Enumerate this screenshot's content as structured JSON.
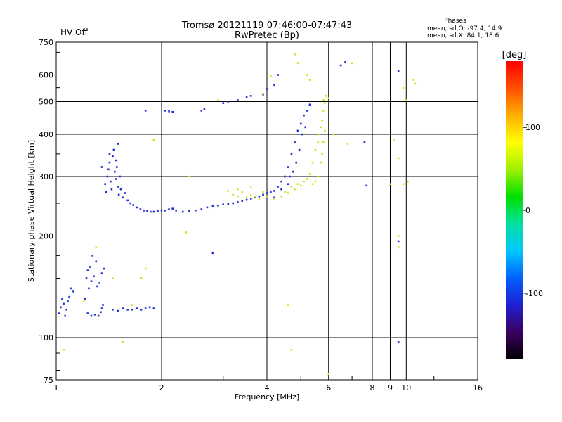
{
  "header": {
    "status": "HV Off",
    "status_color": "#cc0000",
    "title": "Tromsø 20121119 07:46:00-07:47:43",
    "subtitle": "RwPretec (Bp)",
    "stats_title": "Phases",
    "stats_o": "mean, sd,O: -97.4, 14.9",
    "stats_x": "mean, sd,X: 84.1, 18.6"
  },
  "chart_data": {
    "type": "scatter",
    "title": "Tromsø 20121119 07:46:00-07:47:43",
    "subtitle": "RwPretec (Bp)",
    "xlabel": "Frequency [MHz]",
    "ylabel": "Stationary phase Virtual Height [km]",
    "xscale": "log2",
    "yscale": "log",
    "xlim": [
      1,
      16
    ],
    "ylim": [
      75,
      750
    ],
    "xticks": [
      1,
      2,
      4,
      6,
      8,
      9,
      10,
      16
    ],
    "xtick_labels": [
      "1",
      "2",
      "4",
      "6",
      "8",
      "9",
      "10",
      "16"
    ],
    "yticks": [
      75,
      100,
      200,
      300,
      400,
      500,
      600,
      750
    ],
    "ytick_labels": [
      "75",
      "100",
      "200",
      "300",
      "400",
      "500",
      "600",
      "750"
    ],
    "grid": true,
    "colorbar": {
      "label": "[deg]",
      "range": [
        -180,
        180
      ],
      "ticks": [
        100,
        0,
        -100
      ],
      "tick_labels": [
        "100",
        "0",
        "-100"
      ],
      "colors": [
        "#000000",
        "#3a0060",
        "#2020d0",
        "#0060ff",
        "#00c8ff",
        "#00e0a0",
        "#00e000",
        "#a0f000",
        "#ffff00",
        "#ffb000",
        "#ff5000",
        "#ff0000"
      ]
    },
    "series": [
      {
        "name": "O",
        "color": "#2030d8",
        "points": [
          [
            1.02,
            118
          ],
          [
            1.03,
            123
          ],
          [
            1.05,
            126
          ],
          [
            1.07,
            121
          ],
          [
            1.09,
            132
          ],
          [
            1.1,
            140
          ],
          [
            1.12,
            137
          ],
          [
            1.06,
            116
          ],
          [
            1.04,
            130
          ],
          [
            1.08,
            128
          ],
          [
            1.22,
            150
          ],
          [
            1.23,
            158
          ],
          [
            1.25,
            162
          ],
          [
            1.26,
            147
          ],
          [
            1.28,
            152
          ],
          [
            1.3,
            168
          ],
          [
            1.31,
            142
          ],
          [
            1.27,
            175
          ],
          [
            1.24,
            140
          ],
          [
            1.21,
            130
          ],
          [
            1.23,
            118
          ],
          [
            1.26,
            116
          ],
          [
            1.29,
            117
          ],
          [
            1.32,
            116
          ],
          [
            1.34,
            119
          ],
          [
            1.35,
            122
          ],
          [
            1.36,
            125
          ],
          [
            1.33,
            145
          ],
          [
            1.35,
            155
          ],
          [
            1.37,
            160
          ],
          [
            1.38,
            285
          ],
          [
            1.39,
            270
          ],
          [
            1.4,
            300
          ],
          [
            1.41,
            315
          ],
          [
            1.42,
            330
          ],
          [
            1.43,
            290
          ],
          [
            1.44,
            275
          ],
          [
            1.45,
            345
          ],
          [
            1.46,
            360
          ],
          [
            1.47,
            310
          ],
          [
            1.48,
            295
          ],
          [
            1.49,
            320
          ],
          [
            1.5,
            280
          ],
          [
            1.51,
            265
          ],
          [
            1.52,
            300
          ],
          [
            1.53,
            275
          ],
          [
            1.55,
            260
          ],
          [
            1.57,
            268
          ],
          [
            1.6,
            255
          ],
          [
            1.63,
            250
          ],
          [
            1.66,
            247
          ],
          [
            1.7,
            243
          ],
          [
            1.74,
            240
          ],
          [
            1.78,
            238
          ],
          [
            1.82,
            237
          ],
          [
            1.86,
            236
          ],
          [
            1.9,
            236
          ],
          [
            1.95,
            237
          ],
          [
            2.0,
            238
          ],
          [
            2.05,
            238
          ],
          [
            2.1,
            240
          ],
          [
            2.15,
            241
          ],
          [
            2.2,
            238
          ],
          [
            2.3,
            236
          ],
          [
            2.4,
            237
          ],
          [
            2.5,
            238
          ],
          [
            2.6,
            240
          ],
          [
            2.7,
            243
          ],
          [
            2.8,
            245
          ],
          [
            2.9,
            246
          ],
          [
            3.0,
            248
          ],
          [
            3.1,
            249
          ],
          [
            3.2,
            250
          ],
          [
            3.3,
            252
          ],
          [
            3.4,
            254
          ],
          [
            3.5,
            256
          ],
          [
            3.6,
            258
          ],
          [
            3.7,
            260
          ],
          [
            3.8,
            262
          ],
          [
            3.9,
            265
          ],
          [
            4.0,
            268
          ],
          [
            4.1,
            270
          ],
          [
            4.2,
            272
          ],
          [
            4.3,
            280
          ],
          [
            4.4,
            290
          ],
          [
            4.5,
            300
          ],
          [
            4.6,
            320
          ],
          [
            4.7,
            350
          ],
          [
            4.8,
            380
          ],
          [
            4.9,
            410
          ],
          [
            5.0,
            430
          ],
          [
            5.1,
            455
          ],
          [
            5.2,
            470
          ],
          [
            5.3,
            490
          ],
          [
            4.85,
            330
          ],
          [
            4.95,
            360
          ],
          [
            5.05,
            400
          ],
          [
            5.15,
            420
          ],
          [
            4.75,
            310
          ],
          [
            4.65,
            300
          ],
          [
            1.55,
            122
          ],
          [
            1.6,
            121
          ],
          [
            1.65,
            121
          ],
          [
            1.7,
            122
          ],
          [
            1.75,
            121
          ],
          [
            1.8,
            122
          ],
          [
            1.45,
            121
          ],
          [
            1.5,
            120
          ],
          [
            1.85,
            123
          ],
          [
            1.9,
            122
          ],
          [
            1.8,
            470
          ],
          [
            2.05,
            470
          ],
          [
            2.1,
            468
          ],
          [
            2.15,
            466
          ],
          [
            2.6,
            470
          ],
          [
            2.65,
            476
          ],
          [
            3.0,
            495
          ],
          [
            3.1,
            500
          ],
          [
            3.3,
            505
          ],
          [
            3.5,
            515
          ],
          [
            3.6,
            520
          ],
          [
            3.9,
            525
          ],
          [
            4.0,
            545
          ],
          [
            4.2,
            560
          ],
          [
            4.3,
            600
          ],
          [
            2.8,
            178
          ],
          [
            9.5,
            615
          ],
          [
            9.5,
            97
          ],
          [
            7.6,
            380
          ],
          [
            7.7,
            282
          ],
          [
            9.5,
            193
          ],
          [
            6.5,
            640
          ],
          [
            6.7,
            655
          ],
          [
            4.2,
            260
          ],
          [
            4.4,
            275
          ],
          [
            4.6,
            285
          ],
          [
            1.35,
            320
          ],
          [
            1.42,
            350
          ],
          [
            1.48,
            335
          ],
          [
            1.5,
            375
          ]
        ]
      },
      {
        "name": "X",
        "color": "#d8e020",
        "points": [
          [
            3.1,
            272
          ],
          [
            3.2,
            265
          ],
          [
            3.3,
            262
          ],
          [
            3.4,
            270
          ],
          [
            3.5,
            260
          ],
          [
            3.6,
            264
          ],
          [
            3.7,
            262
          ],
          [
            3.8,
            258
          ],
          [
            3.9,
            270
          ],
          [
            4.0,
            262
          ],
          [
            4.2,
            258
          ],
          [
            4.4,
            262
          ],
          [
            4.6,
            268
          ],
          [
            4.8,
            275
          ],
          [
            5.0,
            282
          ],
          [
            5.1,
            290
          ],
          [
            5.2,
            295
          ],
          [
            5.3,
            305
          ],
          [
            5.4,
            330
          ],
          [
            5.5,
            360
          ],
          [
            5.6,
            380
          ],
          [
            5.65,
            400
          ],
          [
            5.7,
            420
          ],
          [
            5.75,
            440
          ],
          [
            5.8,
            470
          ],
          [
            5.85,
            495
          ],
          [
            5.6,
            300
          ],
          [
            5.5,
            290
          ],
          [
            5.4,
            285
          ],
          [
            5.7,
            330
          ],
          [
            5.75,
            350
          ],
          [
            5.8,
            380
          ],
          [
            5.85,
            410
          ],
          [
            4.5,
            270
          ],
          [
            4.7,
            280
          ],
          [
            4.9,
            285
          ],
          [
            3.3,
            275
          ],
          [
            3.6,
            278
          ],
          [
            1.9,
            385
          ],
          [
            2.4,
            300
          ],
          [
            1.8,
            160
          ],
          [
            1.75,
            150
          ],
          [
            1.65,
            125
          ],
          [
            1.45,
            150
          ],
          [
            1.3,
            185
          ],
          [
            1.2,
            128
          ],
          [
            1.05,
            92
          ],
          [
            1.55,
            97
          ],
          [
            2.35,
            205
          ],
          [
            4.6,
            125
          ],
          [
            4.7,
            92
          ],
          [
            4.8,
            690
          ],
          [
            9.2,
            385
          ],
          [
            9.5,
            340
          ],
          [
            9.8,
            285
          ],
          [
            10.1,
            290
          ],
          [
            10.5,
            580
          ],
          [
            10.6,
            565
          ],
          [
            9.5,
            200
          ],
          [
            9.5,
            185
          ],
          [
            10.0,
            505
          ],
          [
            9.8,
            550
          ],
          [
            6.8,
            375
          ],
          [
            7.0,
            650
          ],
          [
            9.0,
            285
          ],
          [
            4.1,
            595
          ],
          [
            4.9,
            650
          ],
          [
            5.2,
            600
          ],
          [
            5.3,
            580
          ],
          [
            5.8,
            505
          ],
          [
            6.2,
            400
          ],
          [
            6.0,
            78
          ],
          [
            6.0,
            512
          ],
          [
            5.9,
            520
          ],
          [
            3.9,
            528
          ],
          [
            2.9,
            505
          ]
        ]
      }
    ]
  }
}
